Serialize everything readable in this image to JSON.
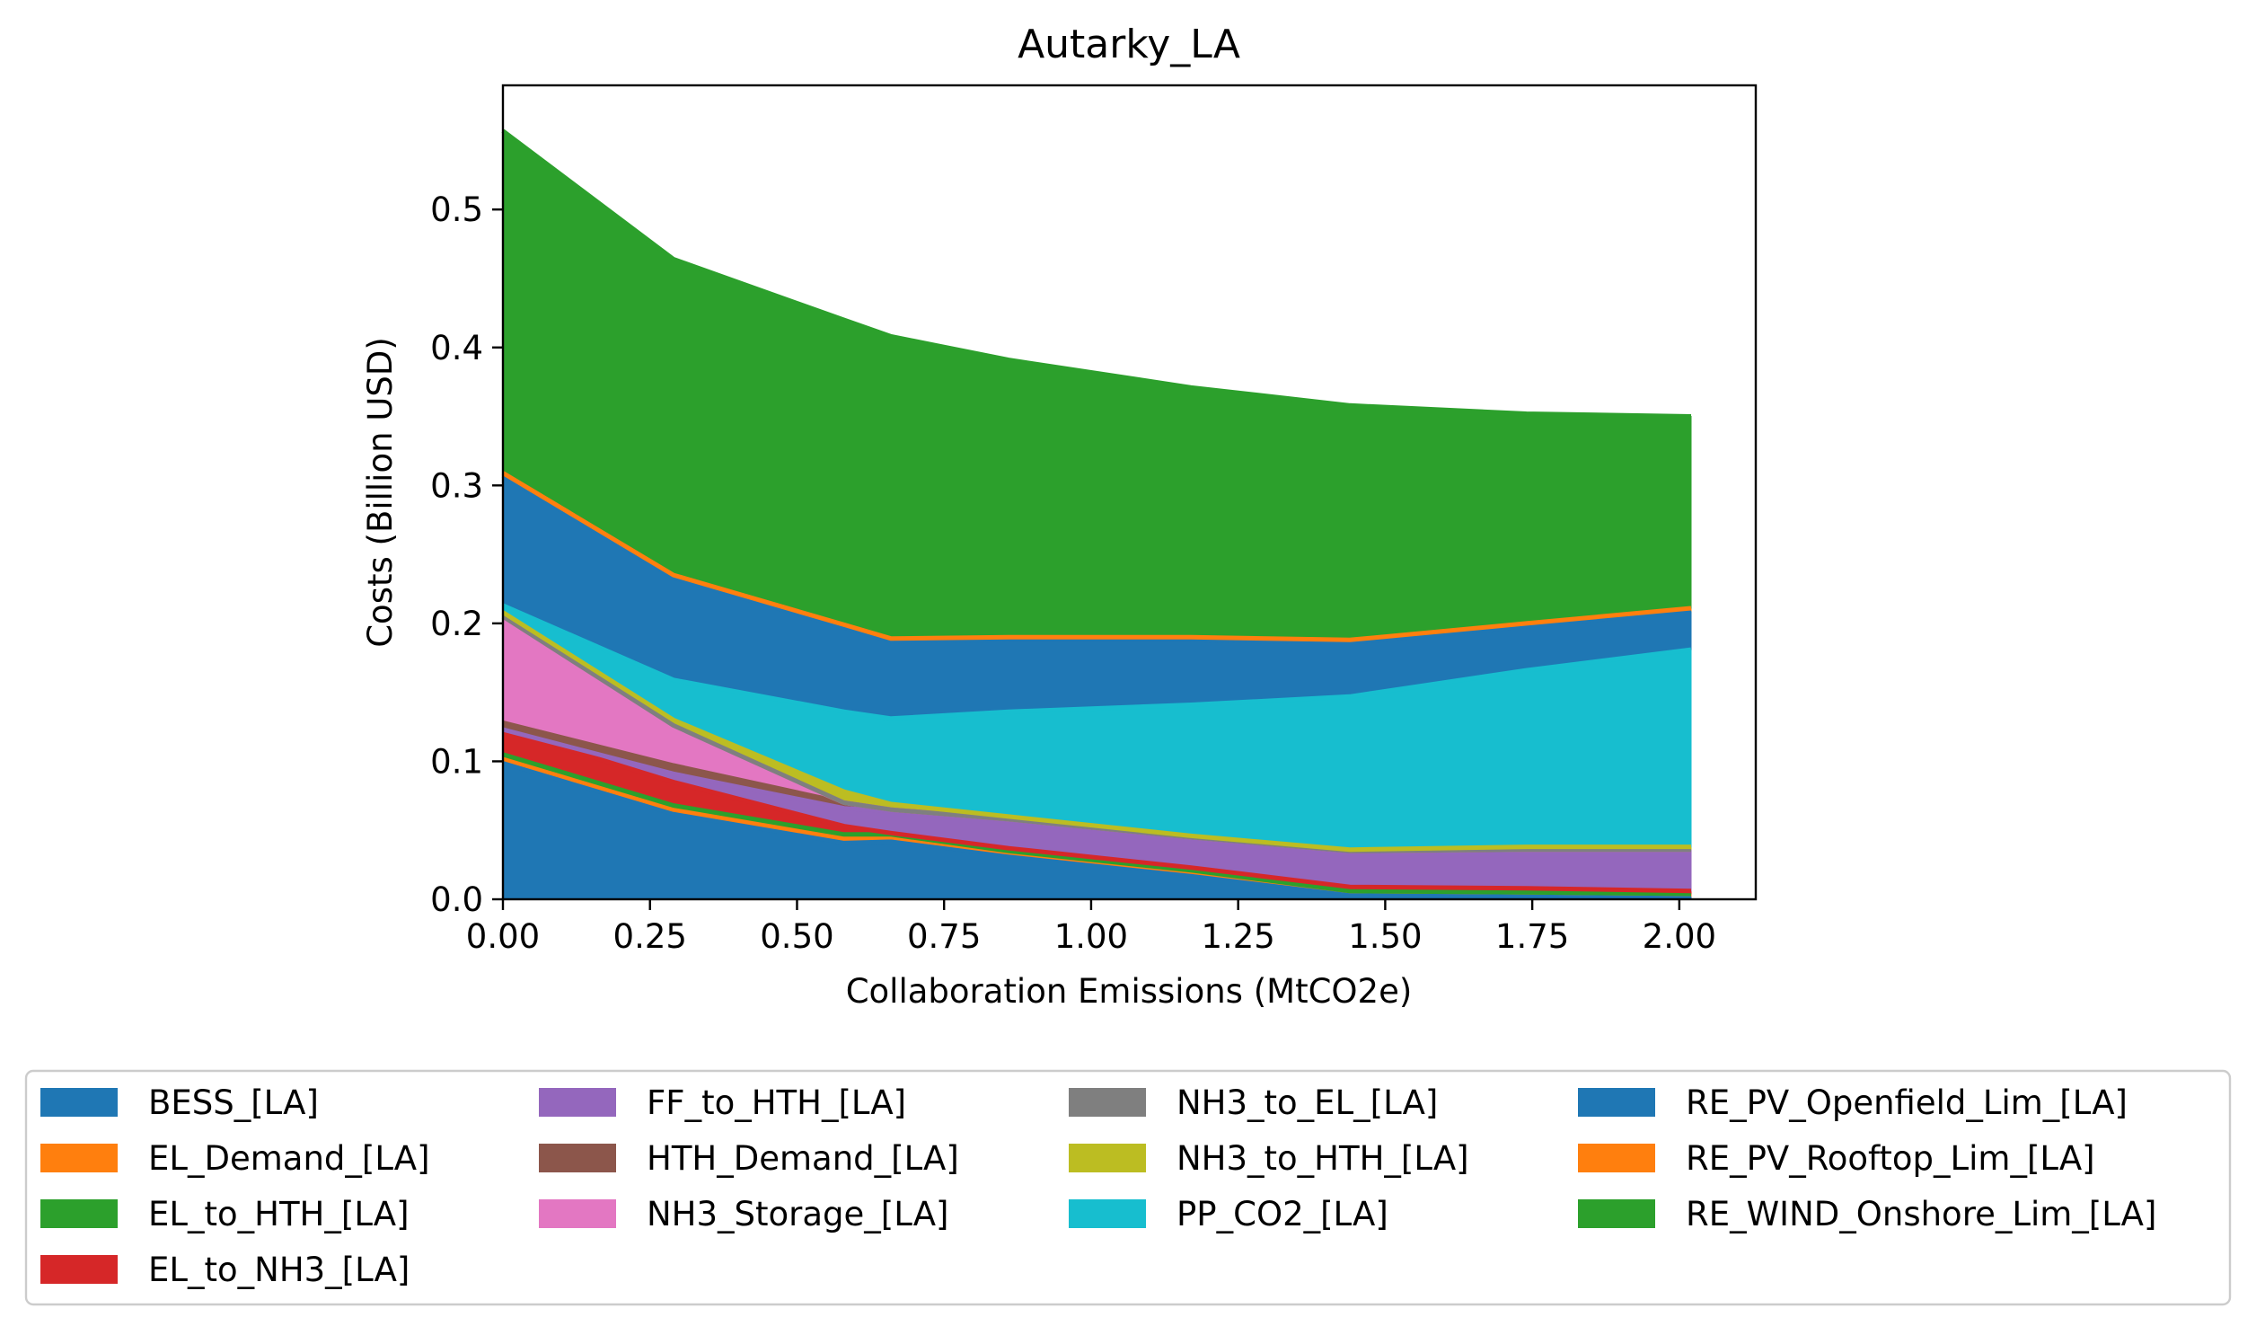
{
  "chart_data": {
    "type": "area",
    "stacked": true,
    "title": "Autarky_LA",
    "xlabel": "Collaboration Emissions (MtCO2e)",
    "ylabel": "Costs (Billion USD)",
    "xlim": [
      0.0,
      2.13
    ],
    "ylim": [
      0.0,
      0.59
    ],
    "xticks": [
      "0.00",
      "0.25",
      "0.50",
      "0.75",
      "1.00",
      "1.25",
      "1.50",
      "1.75",
      "2.00"
    ],
    "xtick_values": [
      0.0,
      0.25,
      0.5,
      0.75,
      1.0,
      1.25,
      1.5,
      1.75,
      2.0
    ],
    "yticks": [
      "0.0",
      "0.1",
      "0.2",
      "0.3",
      "0.4",
      "0.5"
    ],
    "ytick_values": [
      0.0,
      0.1,
      0.2,
      0.3,
      0.4,
      0.5
    ],
    "grid": false,
    "legend_position": "bottom",
    "legend_columns": 4,
    "x": [
      0.0,
      0.29,
      0.58,
      0.66,
      0.86,
      1.17,
      1.44,
      1.74,
      2.02
    ],
    "series": [
      {
        "name": "BESS_[LA]",
        "color": "#1f77b4",
        "values": [
          0.099,
          0.062,
          0.041,
          0.042,
          0.032,
          0.018,
          0.004,
          0.003,
          0.002
        ]
      },
      {
        "name": "EL_Demand_[LA]",
        "color": "#ff7f0e",
        "values": [
          0.003,
          0.003,
          0.003,
          0.003,
          0.002,
          0.002,
          0.002,
          0.002,
          0.002
        ]
      },
      {
        "name": "EL_to_HTH_[LA]",
        "color": "#2ca02c",
        "values": [
          0.003,
          0.003,
          0.003,
          0.002,
          0.001,
          0.001,
          0.0,
          0.0,
          0.0
        ]
      },
      {
        "name": "EL_to_NH3_[LA]",
        "color": "#d62728",
        "values": [
          0.018,
          0.017,
          0.006,
          0.001,
          0.002,
          0.002,
          0.003,
          0.003,
          0.002
        ]
      },
      {
        "name": "FF_to_HTH_[LA]",
        "color": "#9467bd",
        "values": [
          0.0,
          0.006,
          0.013,
          0.016,
          0.02,
          0.022,
          0.026,
          0.028,
          0.03
        ]
      },
      {
        "name": "HTH_Demand_[LA]",
        "color": "#8c564b",
        "values": [
          0.005,
          0.006,
          0.004,
          0.001,
          0.001,
          0.0,
          0.0,
          0.0,
          0.0
        ]
      },
      {
        "name": "NH3_Storage_[LA]",
        "color": "#e377c2",
        "values": [
          0.074,
          0.027,
          0.0,
          0.0,
          0.0,
          0.0,
          0.0,
          0.0,
          0.0
        ]
      },
      {
        "name": "NH3_to_EL_[LA]",
        "color": "#7f7f7f",
        "values": [
          0.003,
          0.002,
          0.0,
          0.0,
          0.0,
          0.0,
          0.0,
          0.0,
          0.0
        ]
      },
      {
        "name": "NH3_to_HTH_[LA]",
        "color": "#bcbd22",
        "values": [
          0.003,
          0.004,
          0.008,
          0.004,
          0.002,
          0.001,
          0.001,
          0.002,
          0.002
        ]
      },
      {
        "name": "PP_CO2_[LA]",
        "color": "#17becf",
        "values": [
          0.005,
          0.029,
          0.058,
          0.062,
          0.076,
          0.095,
          0.111,
          0.128,
          0.143
        ]
      },
      {
        "name": "RE_PV_Openfield_Lim_[LA]",
        "color": "#1f77b4",
        "values": [
          0.094,
          0.074,
          0.061,
          0.056,
          0.052,
          0.047,
          0.039,
          0.032,
          0.028
        ]
      },
      {
        "name": "RE_PV_Rooftop_Lim_[LA]",
        "color": "#ff7f0e",
        "values": [
          0.002,
          0.002,
          0.002,
          0.002,
          0.002,
          0.002,
          0.002,
          0.002,
          0.002
        ]
      },
      {
        "name": "RE_WIND_Onshore_Lim_[LA]",
        "color": "#2ca02c",
        "values": [
          0.248,
          0.229,
          0.221,
          0.219,
          0.201,
          0.181,
          0.17,
          0.152,
          0.139
        ]
      }
    ]
  }
}
